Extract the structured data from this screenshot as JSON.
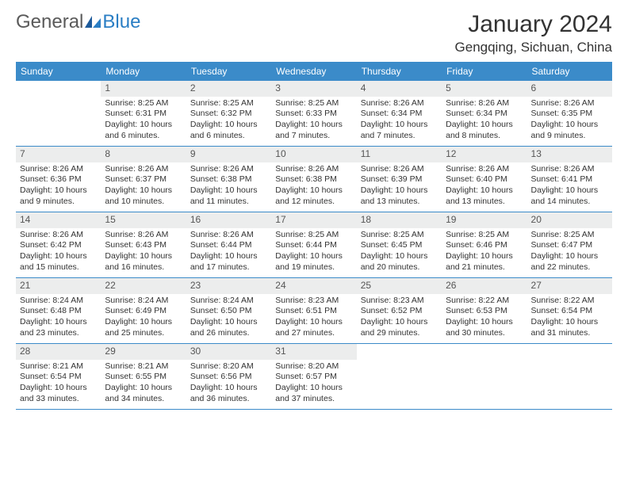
{
  "brand": {
    "part1": "General",
    "part2": "Blue"
  },
  "title": "January 2024",
  "location": "Gengqing, Sichuan, China",
  "colors": {
    "header_bg": "#3b8bc9",
    "header_text": "#ffffff",
    "daynum_bg": "#eceded",
    "border": "#3b8bc9",
    "logo_gray": "#5a5a5a",
    "logo_blue": "#2a7ec4"
  },
  "day_names": [
    "Sunday",
    "Monday",
    "Tuesday",
    "Wednesday",
    "Thursday",
    "Friday",
    "Saturday"
  ],
  "weeks": [
    [
      {
        "num": "",
        "sunrise": "",
        "sunset": "",
        "daylight": ""
      },
      {
        "num": "1",
        "sunrise": "Sunrise: 8:25 AM",
        "sunset": "Sunset: 6:31 PM",
        "daylight": "Daylight: 10 hours and 6 minutes."
      },
      {
        "num": "2",
        "sunrise": "Sunrise: 8:25 AM",
        "sunset": "Sunset: 6:32 PM",
        "daylight": "Daylight: 10 hours and 6 minutes."
      },
      {
        "num": "3",
        "sunrise": "Sunrise: 8:25 AM",
        "sunset": "Sunset: 6:33 PM",
        "daylight": "Daylight: 10 hours and 7 minutes."
      },
      {
        "num": "4",
        "sunrise": "Sunrise: 8:26 AM",
        "sunset": "Sunset: 6:34 PM",
        "daylight": "Daylight: 10 hours and 7 minutes."
      },
      {
        "num": "5",
        "sunrise": "Sunrise: 8:26 AM",
        "sunset": "Sunset: 6:34 PM",
        "daylight": "Daylight: 10 hours and 8 minutes."
      },
      {
        "num": "6",
        "sunrise": "Sunrise: 8:26 AM",
        "sunset": "Sunset: 6:35 PM",
        "daylight": "Daylight: 10 hours and 9 minutes."
      }
    ],
    [
      {
        "num": "7",
        "sunrise": "Sunrise: 8:26 AM",
        "sunset": "Sunset: 6:36 PM",
        "daylight": "Daylight: 10 hours and 9 minutes."
      },
      {
        "num": "8",
        "sunrise": "Sunrise: 8:26 AM",
        "sunset": "Sunset: 6:37 PM",
        "daylight": "Daylight: 10 hours and 10 minutes."
      },
      {
        "num": "9",
        "sunrise": "Sunrise: 8:26 AM",
        "sunset": "Sunset: 6:38 PM",
        "daylight": "Daylight: 10 hours and 11 minutes."
      },
      {
        "num": "10",
        "sunrise": "Sunrise: 8:26 AM",
        "sunset": "Sunset: 6:38 PM",
        "daylight": "Daylight: 10 hours and 12 minutes."
      },
      {
        "num": "11",
        "sunrise": "Sunrise: 8:26 AM",
        "sunset": "Sunset: 6:39 PM",
        "daylight": "Daylight: 10 hours and 13 minutes."
      },
      {
        "num": "12",
        "sunrise": "Sunrise: 8:26 AM",
        "sunset": "Sunset: 6:40 PM",
        "daylight": "Daylight: 10 hours and 13 minutes."
      },
      {
        "num": "13",
        "sunrise": "Sunrise: 8:26 AM",
        "sunset": "Sunset: 6:41 PM",
        "daylight": "Daylight: 10 hours and 14 minutes."
      }
    ],
    [
      {
        "num": "14",
        "sunrise": "Sunrise: 8:26 AM",
        "sunset": "Sunset: 6:42 PM",
        "daylight": "Daylight: 10 hours and 15 minutes."
      },
      {
        "num": "15",
        "sunrise": "Sunrise: 8:26 AM",
        "sunset": "Sunset: 6:43 PM",
        "daylight": "Daylight: 10 hours and 16 minutes."
      },
      {
        "num": "16",
        "sunrise": "Sunrise: 8:26 AM",
        "sunset": "Sunset: 6:44 PM",
        "daylight": "Daylight: 10 hours and 17 minutes."
      },
      {
        "num": "17",
        "sunrise": "Sunrise: 8:25 AM",
        "sunset": "Sunset: 6:44 PM",
        "daylight": "Daylight: 10 hours and 19 minutes."
      },
      {
        "num": "18",
        "sunrise": "Sunrise: 8:25 AM",
        "sunset": "Sunset: 6:45 PM",
        "daylight": "Daylight: 10 hours and 20 minutes."
      },
      {
        "num": "19",
        "sunrise": "Sunrise: 8:25 AM",
        "sunset": "Sunset: 6:46 PM",
        "daylight": "Daylight: 10 hours and 21 minutes."
      },
      {
        "num": "20",
        "sunrise": "Sunrise: 8:25 AM",
        "sunset": "Sunset: 6:47 PM",
        "daylight": "Daylight: 10 hours and 22 minutes."
      }
    ],
    [
      {
        "num": "21",
        "sunrise": "Sunrise: 8:24 AM",
        "sunset": "Sunset: 6:48 PM",
        "daylight": "Daylight: 10 hours and 23 minutes."
      },
      {
        "num": "22",
        "sunrise": "Sunrise: 8:24 AM",
        "sunset": "Sunset: 6:49 PM",
        "daylight": "Daylight: 10 hours and 25 minutes."
      },
      {
        "num": "23",
        "sunrise": "Sunrise: 8:24 AM",
        "sunset": "Sunset: 6:50 PM",
        "daylight": "Daylight: 10 hours and 26 minutes."
      },
      {
        "num": "24",
        "sunrise": "Sunrise: 8:23 AM",
        "sunset": "Sunset: 6:51 PM",
        "daylight": "Daylight: 10 hours and 27 minutes."
      },
      {
        "num": "25",
        "sunrise": "Sunrise: 8:23 AM",
        "sunset": "Sunset: 6:52 PM",
        "daylight": "Daylight: 10 hours and 29 minutes."
      },
      {
        "num": "26",
        "sunrise": "Sunrise: 8:22 AM",
        "sunset": "Sunset: 6:53 PM",
        "daylight": "Daylight: 10 hours and 30 minutes."
      },
      {
        "num": "27",
        "sunrise": "Sunrise: 8:22 AM",
        "sunset": "Sunset: 6:54 PM",
        "daylight": "Daylight: 10 hours and 31 minutes."
      }
    ],
    [
      {
        "num": "28",
        "sunrise": "Sunrise: 8:21 AM",
        "sunset": "Sunset: 6:54 PM",
        "daylight": "Daylight: 10 hours and 33 minutes."
      },
      {
        "num": "29",
        "sunrise": "Sunrise: 8:21 AM",
        "sunset": "Sunset: 6:55 PM",
        "daylight": "Daylight: 10 hours and 34 minutes."
      },
      {
        "num": "30",
        "sunrise": "Sunrise: 8:20 AM",
        "sunset": "Sunset: 6:56 PM",
        "daylight": "Daylight: 10 hours and 36 minutes."
      },
      {
        "num": "31",
        "sunrise": "Sunrise: 8:20 AM",
        "sunset": "Sunset: 6:57 PM",
        "daylight": "Daylight: 10 hours and 37 minutes."
      },
      {
        "num": "",
        "sunrise": "",
        "sunset": "",
        "daylight": ""
      },
      {
        "num": "",
        "sunrise": "",
        "sunset": "",
        "daylight": ""
      },
      {
        "num": "",
        "sunrise": "",
        "sunset": "",
        "daylight": ""
      }
    ]
  ]
}
